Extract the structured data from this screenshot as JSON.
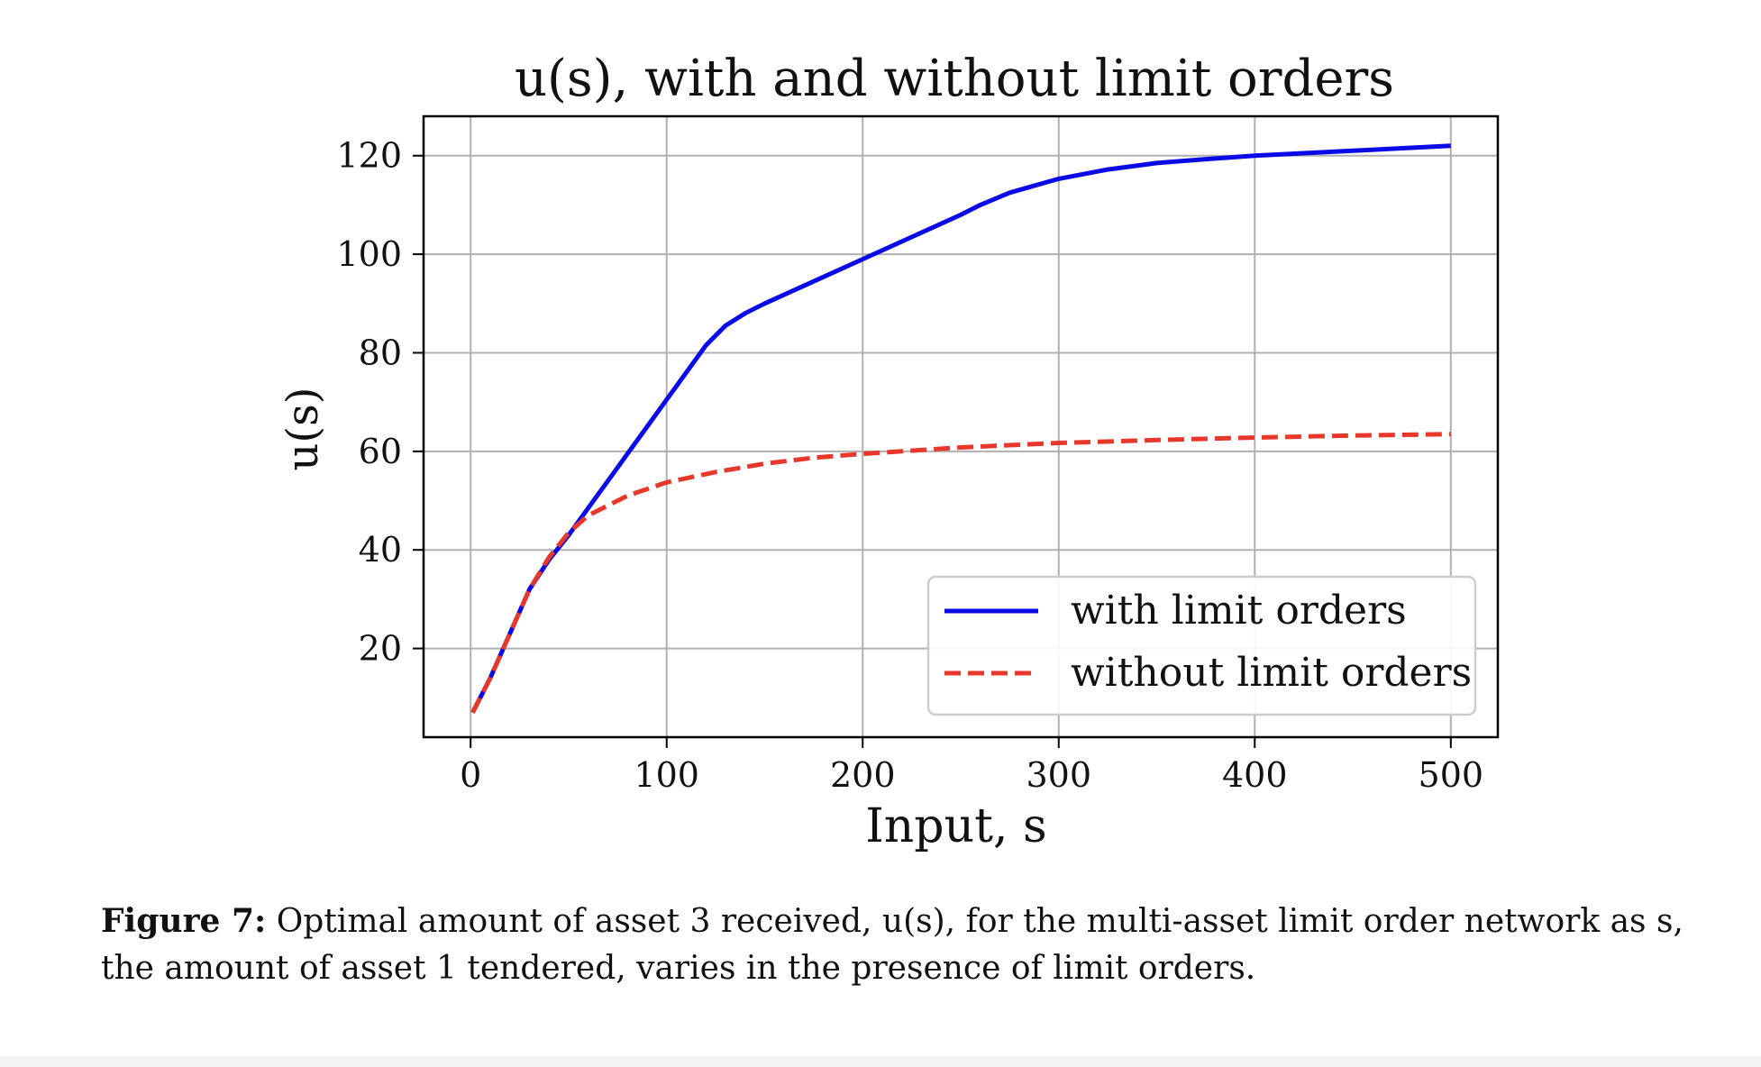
{
  "chart_data": {
    "type": "line",
    "title": "u(s), with and without limit orders",
    "xlabel": "Input, s",
    "ylabel": "u(s)",
    "xlim": [
      -24,
      524
    ],
    "ylim": [
      2,
      128
    ],
    "xticks": [
      0,
      100,
      200,
      300,
      400,
      500
    ],
    "yticks": [
      20,
      40,
      60,
      80,
      100,
      120
    ],
    "grid": true,
    "legend_position": "lower-right",
    "series": [
      {
        "name": "with limit orders",
        "color": "#0a0ae6",
        "style": "solid",
        "x": [
          1,
          10,
          20,
          30,
          40,
          50,
          60,
          70,
          80,
          90,
          100,
          110,
          120,
          130,
          140,
          150,
          175,
          200,
          225,
          250,
          260,
          275,
          300,
          325,
          350,
          375,
          400,
          450,
          500
        ],
        "y": [
          7,
          14,
          23,
          32,
          38,
          43,
          48.5,
          54,
          59.5,
          65,
          70.5,
          76,
          81.5,
          85.5,
          88,
          90,
          94.5,
          99,
          103.5,
          108,
          110,
          112.5,
          115.3,
          117.2,
          118.5,
          119.3,
          120,
          121,
          122
        ]
      },
      {
        "name": "without limit orders",
        "color": "#e8382b",
        "style": "dashed",
        "x": [
          1,
          10,
          20,
          30,
          40,
          50,
          60,
          80,
          100,
          125,
          150,
          175,
          200,
          250,
          300,
          350,
          400,
          450,
          500
        ],
        "y": [
          7,
          14,
          23,
          32,
          38.5,
          43.5,
          47,
          51,
          53.7,
          55.8,
          57.5,
          58.7,
          59.5,
          60.8,
          61.7,
          62.3,
          62.8,
          63.2,
          63.5
        ]
      }
    ]
  },
  "caption": {
    "label": "Figure 7:",
    "text": "Optimal amount of asset 3 received, u(s), for the multi-asset limit order network as s, the amount of asset 1 tendered, varies in the presence of limit orders."
  }
}
